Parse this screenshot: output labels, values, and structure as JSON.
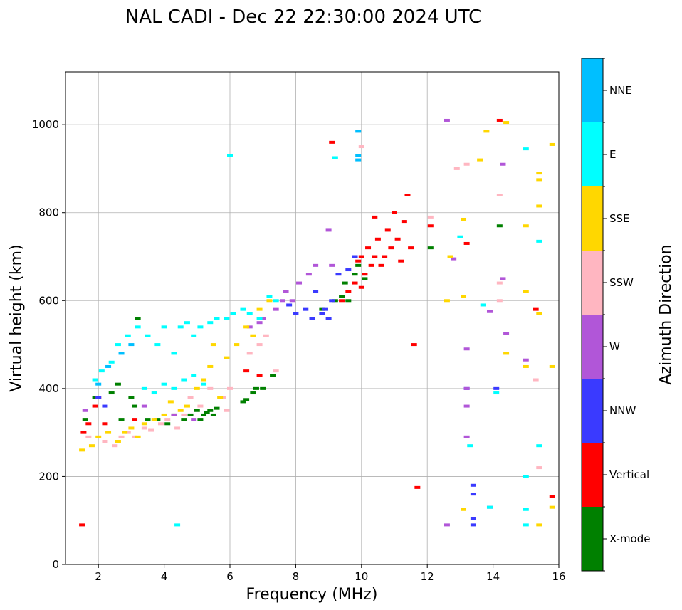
{
  "chart_data": {
    "type": "scatter",
    "title": "NAL CADI - Dec 22 22:30:00 2024 UTC",
    "xlabel": "Frequency (MHz)",
    "ylabel": "Virtual height (km)",
    "xlim": [
      1,
      16
    ],
    "ylim": [
      0,
      1120
    ],
    "xticks": [
      2,
      4,
      6,
      8,
      10,
      12,
      14,
      16
    ],
    "yticks": [
      0,
      200,
      400,
      600,
      800,
      1000
    ],
    "grid": true,
    "colorbar": {
      "label": "Azimuth Direction",
      "categories": [
        "X-mode",
        "Vertical",
        "NNW",
        "W",
        "SSW",
        "SSE",
        "E",
        "NNE"
      ],
      "colors": [
        "#008000",
        "#ff0000",
        "#3a3aff",
        "#b156d8",
        "#ffb6c1",
        "#ffd700",
        "#00ffff",
        "#00bfff"
      ]
    },
    "series": [
      {
        "name": "X-mode",
        "points": [
          [
            1.6,
            330
          ],
          [
            1.9,
            380
          ],
          [
            2.4,
            390
          ],
          [
            2.6,
            410
          ],
          [
            2.7,
            330
          ],
          [
            3.0,
            380
          ],
          [
            3.1,
            360
          ],
          [
            3.2,
            560
          ],
          [
            3.5,
            330
          ],
          [
            3.8,
            330
          ],
          [
            4.1,
            320
          ],
          [
            4.3,
            340
          ],
          [
            4.6,
            330
          ],
          [
            4.8,
            340
          ],
          [
            5.0,
            350
          ],
          [
            5.1,
            330
          ],
          [
            5.2,
            340
          ],
          [
            5.3,
            345
          ],
          [
            5.4,
            350
          ],
          [
            5.5,
            340
          ],
          [
            5.6,
            355
          ],
          [
            6.4,
            370
          ],
          [
            6.5,
            375
          ],
          [
            6.7,
            390
          ],
          [
            6.8,
            400
          ],
          [
            7.0,
            400
          ],
          [
            7.3,
            430
          ],
          [
            8.8,
            580
          ],
          [
            9.2,
            600
          ],
          [
            9.4,
            610
          ],
          [
            9.5,
            640
          ],
          [
            9.6,
            600
          ],
          [
            9.8,
            660
          ],
          [
            9.9,
            680
          ],
          [
            10.1,
            650
          ],
          [
            12.1,
            720
          ],
          [
            14.2,
            770
          ]
        ]
      },
      {
        "name": "Vertical",
        "points": [
          [
            1.5,
            90
          ],
          [
            1.55,
            300
          ],
          [
            1.7,
            320
          ],
          [
            1.9,
            360
          ],
          [
            2.0,
            380
          ],
          [
            2.2,
            320
          ],
          [
            3.1,
            330
          ],
          [
            6.5,
            440
          ],
          [
            6.9,
            430
          ],
          [
            9.1,
            960
          ],
          [
            9.4,
            600
          ],
          [
            9.6,
            620
          ],
          [
            9.8,
            640
          ],
          [
            9.9,
            690
          ],
          [
            10.0,
            630
          ],
          [
            10.0,
            700
          ],
          [
            10.1,
            660
          ],
          [
            10.2,
            720
          ],
          [
            10.3,
            680
          ],
          [
            10.4,
            700
          ],
          [
            10.4,
            790
          ],
          [
            10.5,
            740
          ],
          [
            10.6,
            680
          ],
          [
            10.7,
            700
          ],
          [
            10.8,
            760
          ],
          [
            10.9,
            720
          ],
          [
            11.0,
            800
          ],
          [
            11.1,
            740
          ],
          [
            11.2,
            690
          ],
          [
            11.3,
            780
          ],
          [
            11.4,
            840
          ],
          [
            11.5,
            720
          ],
          [
            11.6,
            500
          ],
          [
            11.7,
            175
          ],
          [
            12.1,
            770
          ],
          [
            13.2,
            730
          ],
          [
            14.2,
            1010
          ],
          [
            15.3,
            580
          ],
          [
            15.8,
            155
          ]
        ]
      },
      {
        "name": "NNW",
        "points": [
          [
            2.0,
            380
          ],
          [
            2.2,
            360
          ],
          [
            7.8,
            590
          ],
          [
            8.0,
            570
          ],
          [
            8.3,
            580
          ],
          [
            8.5,
            560
          ],
          [
            8.6,
            620
          ],
          [
            8.8,
            570
          ],
          [
            8.9,
            580
          ],
          [
            9.0,
            560
          ],
          [
            9.1,
            600
          ],
          [
            9.3,
            660
          ],
          [
            9.6,
            670
          ],
          [
            9.8,
            700
          ],
          [
            13.2,
            400
          ],
          [
            13.4,
            180
          ],
          [
            13.4,
            160
          ],
          [
            13.4,
            105
          ],
          [
            13.4,
            90
          ],
          [
            14.1,
            400
          ]
        ]
      },
      {
        "name": "W",
        "points": [
          [
            1.6,
            350
          ],
          [
            3.4,
            360
          ],
          [
            4.3,
            340
          ],
          [
            4.9,
            330
          ],
          [
            6.6,
            540
          ],
          [
            6.9,
            550
          ],
          [
            7.0,
            560
          ],
          [
            7.4,
            580
          ],
          [
            7.6,
            600
          ],
          [
            7.7,
            620
          ],
          [
            7.9,
            600
          ],
          [
            8.1,
            640
          ],
          [
            8.4,
            660
          ],
          [
            8.6,
            680
          ],
          [
            9.0,
            760
          ],
          [
            9.1,
            680
          ],
          [
            12.6,
            1010
          ],
          [
            12.6,
            90
          ],
          [
            12.8,
            695
          ],
          [
            13.2,
            490
          ],
          [
            13.2,
            400
          ],
          [
            13.2,
            360
          ],
          [
            13.2,
            290
          ],
          [
            13.9,
            130
          ],
          [
            13.9,
            575
          ],
          [
            14.3,
            910
          ],
          [
            14.3,
            650
          ],
          [
            14.4,
            525
          ],
          [
            15.0,
            465
          ]
        ]
      },
      {
        "name": "SSW",
        "points": [
          [
            1.7,
            290
          ],
          [
            2.2,
            280
          ],
          [
            2.5,
            270
          ],
          [
            2.7,
            290
          ],
          [
            2.9,
            300
          ],
          [
            3.1,
            290
          ],
          [
            3.4,
            310
          ],
          [
            3.6,
            305
          ],
          [
            3.9,
            320
          ],
          [
            4.1,
            330
          ],
          [
            4.4,
            310
          ],
          [
            4.6,
            340
          ],
          [
            4.8,
            380
          ],
          [
            5.1,
            360
          ],
          [
            5.4,
            400
          ],
          [
            5.8,
            380
          ],
          [
            5.9,
            350
          ],
          [
            6.0,
            400
          ],
          [
            6.6,
            480
          ],
          [
            6.9,
            500
          ],
          [
            7.1,
            520
          ],
          [
            7.4,
            440
          ],
          [
            10.0,
            950
          ],
          [
            12.1,
            790
          ],
          [
            12.9,
            900
          ],
          [
            13.2,
            910
          ],
          [
            14.2,
            640
          ],
          [
            14.2,
            600
          ],
          [
            14.2,
            840
          ],
          [
            15.3,
            420
          ],
          [
            15.4,
            220
          ]
        ]
      },
      {
        "name": "SSE",
        "points": [
          [
            1.5,
            260
          ],
          [
            1.8,
            270
          ],
          [
            2.0,
            290
          ],
          [
            2.3,
            300
          ],
          [
            2.6,
            280
          ],
          [
            2.8,
            300
          ],
          [
            3.0,
            310
          ],
          [
            3.2,
            290
          ],
          [
            3.4,
            320
          ],
          [
            3.7,
            330
          ],
          [
            4.0,
            340
          ],
          [
            4.2,
            370
          ],
          [
            4.5,
            350
          ],
          [
            4.7,
            360
          ],
          [
            5.0,
            400
          ],
          [
            5.2,
            420
          ],
          [
            5.4,
            450
          ],
          [
            5.5,
            500
          ],
          [
            5.7,
            380
          ],
          [
            5.9,
            470
          ],
          [
            6.2,
            500
          ],
          [
            6.5,
            540
          ],
          [
            6.7,
            520
          ],
          [
            6.9,
            580
          ],
          [
            7.2,
            600
          ],
          [
            12.6,
            600
          ],
          [
            12.7,
            700
          ],
          [
            13.1,
            610
          ],
          [
            13.1,
            125
          ],
          [
            13.1,
            785
          ],
          [
            13.6,
            920
          ],
          [
            13.8,
            985
          ],
          [
            14.4,
            1005
          ],
          [
            14.4,
            480
          ],
          [
            15.0,
            770
          ],
          [
            15.0,
            620
          ],
          [
            15.0,
            450
          ],
          [
            15.4,
            890
          ],
          [
            15.4,
            875
          ],
          [
            15.4,
            815
          ],
          [
            15.4,
            570
          ],
          [
            15.4,
            90
          ],
          [
            15.8,
            955
          ],
          [
            15.8,
            130
          ],
          [
            15.8,
            450
          ]
        ]
      },
      {
        "name": "E",
        "points": [
          [
            1.9,
            420
          ],
          [
            2.1,
            440
          ],
          [
            2.4,
            460
          ],
          [
            2.6,
            500
          ],
          [
            2.9,
            520
          ],
          [
            3.2,
            540
          ],
          [
            3.5,
            520
          ],
          [
            3.8,
            500
          ],
          [
            4.0,
            540
          ],
          [
            4.3,
            480
          ],
          [
            4.5,
            540
          ],
          [
            4.7,
            550
          ],
          [
            4.9,
            520
          ],
          [
            5.1,
            540
          ],
          [
            5.4,
            550
          ],
          [
            5.6,
            560
          ],
          [
            5.9,
            560
          ],
          [
            6.1,
            570
          ],
          [
            6.4,
            580
          ],
          [
            6.6,
            570
          ],
          [
            6.9,
            560
          ],
          [
            7.2,
            610
          ],
          [
            7.4,
            600
          ],
          [
            3.4,
            400
          ],
          [
            3.7,
            390
          ],
          [
            4.0,
            410
          ],
          [
            4.3,
            400
          ],
          [
            4.6,
            420
          ],
          [
            4.9,
            430
          ],
          [
            5.2,
            410
          ],
          [
            6.0,
            930
          ],
          [
            9.2,
            925
          ],
          [
            13.0,
            745
          ],
          [
            13.3,
            270
          ],
          [
            13.7,
            590
          ],
          [
            13.9,
            130
          ],
          [
            14.1,
            390
          ],
          [
            15.0,
            945
          ],
          [
            15.0,
            200
          ],
          [
            15.0,
            125
          ],
          [
            15.0,
            90
          ],
          [
            15.4,
            735
          ],
          [
            15.4,
            270
          ],
          [
            4.4,
            90
          ]
        ]
      },
      {
        "name": "NNE",
        "points": [
          [
            2.0,
            410
          ],
          [
            2.3,
            450
          ],
          [
            2.7,
            480
          ],
          [
            3.0,
            500
          ],
          [
            9.9,
            985
          ],
          [
            9.9,
            930
          ],
          [
            9.9,
            920
          ]
        ]
      }
    ]
  }
}
